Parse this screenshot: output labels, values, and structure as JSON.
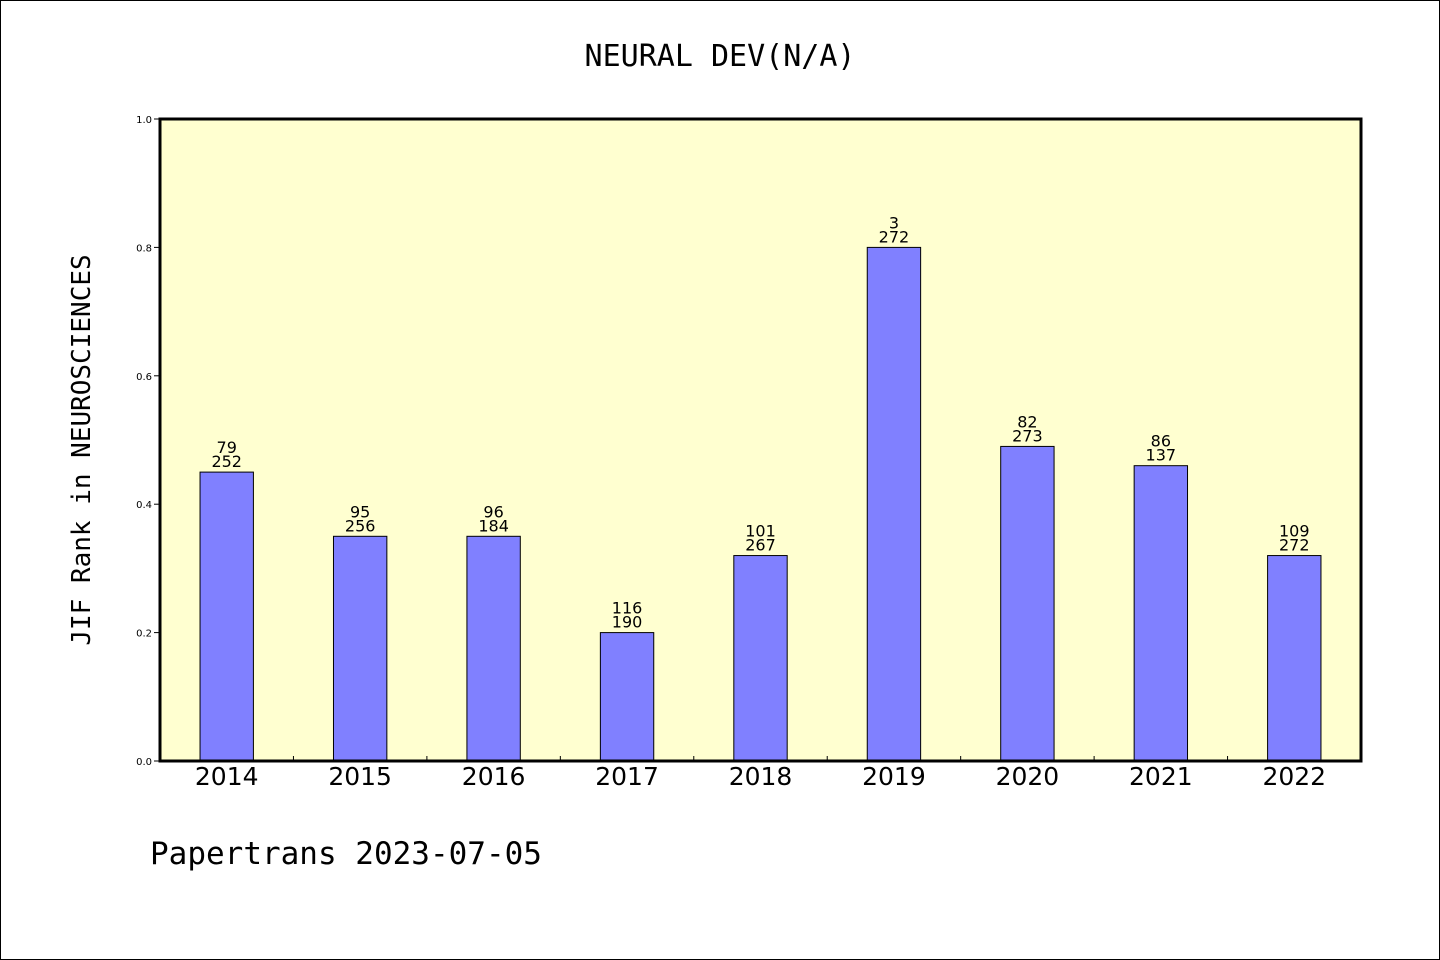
{
  "chart_data": {
    "type": "bar",
    "title": "NEURAL DEV(N/A)",
    "ylabel": "JIF Rank in NEUROSCIENCES",
    "xlabel": "",
    "ylim": [
      0,
      1.0
    ],
    "yticks": [
      "0.0",
      "0.2",
      "0.4",
      "0.6",
      "0.8",
      "1.0"
    ],
    "categories": [
      "2014",
      "2015",
      "2016",
      "2017",
      "2018",
      "2019",
      "2020",
      "2021",
      "2022"
    ],
    "values": [
      0.45,
      0.35,
      0.35,
      0.2,
      0.32,
      0.8,
      0.49,
      0.46,
      0.32
    ],
    "rank": [
      "79",
      "95",
      "96",
      "116",
      "101",
      "3",
      "82",
      "86",
      "109"
    ],
    "total": [
      "252",
      "256",
      "184",
      "190",
      "267",
      "272",
      "273",
      "137",
      "272"
    ],
    "grid": false,
    "colors": {
      "plot_background": "#ffffd0",
      "bar": "#8080ff"
    }
  },
  "footer": "Papertrans 2023-07-05"
}
